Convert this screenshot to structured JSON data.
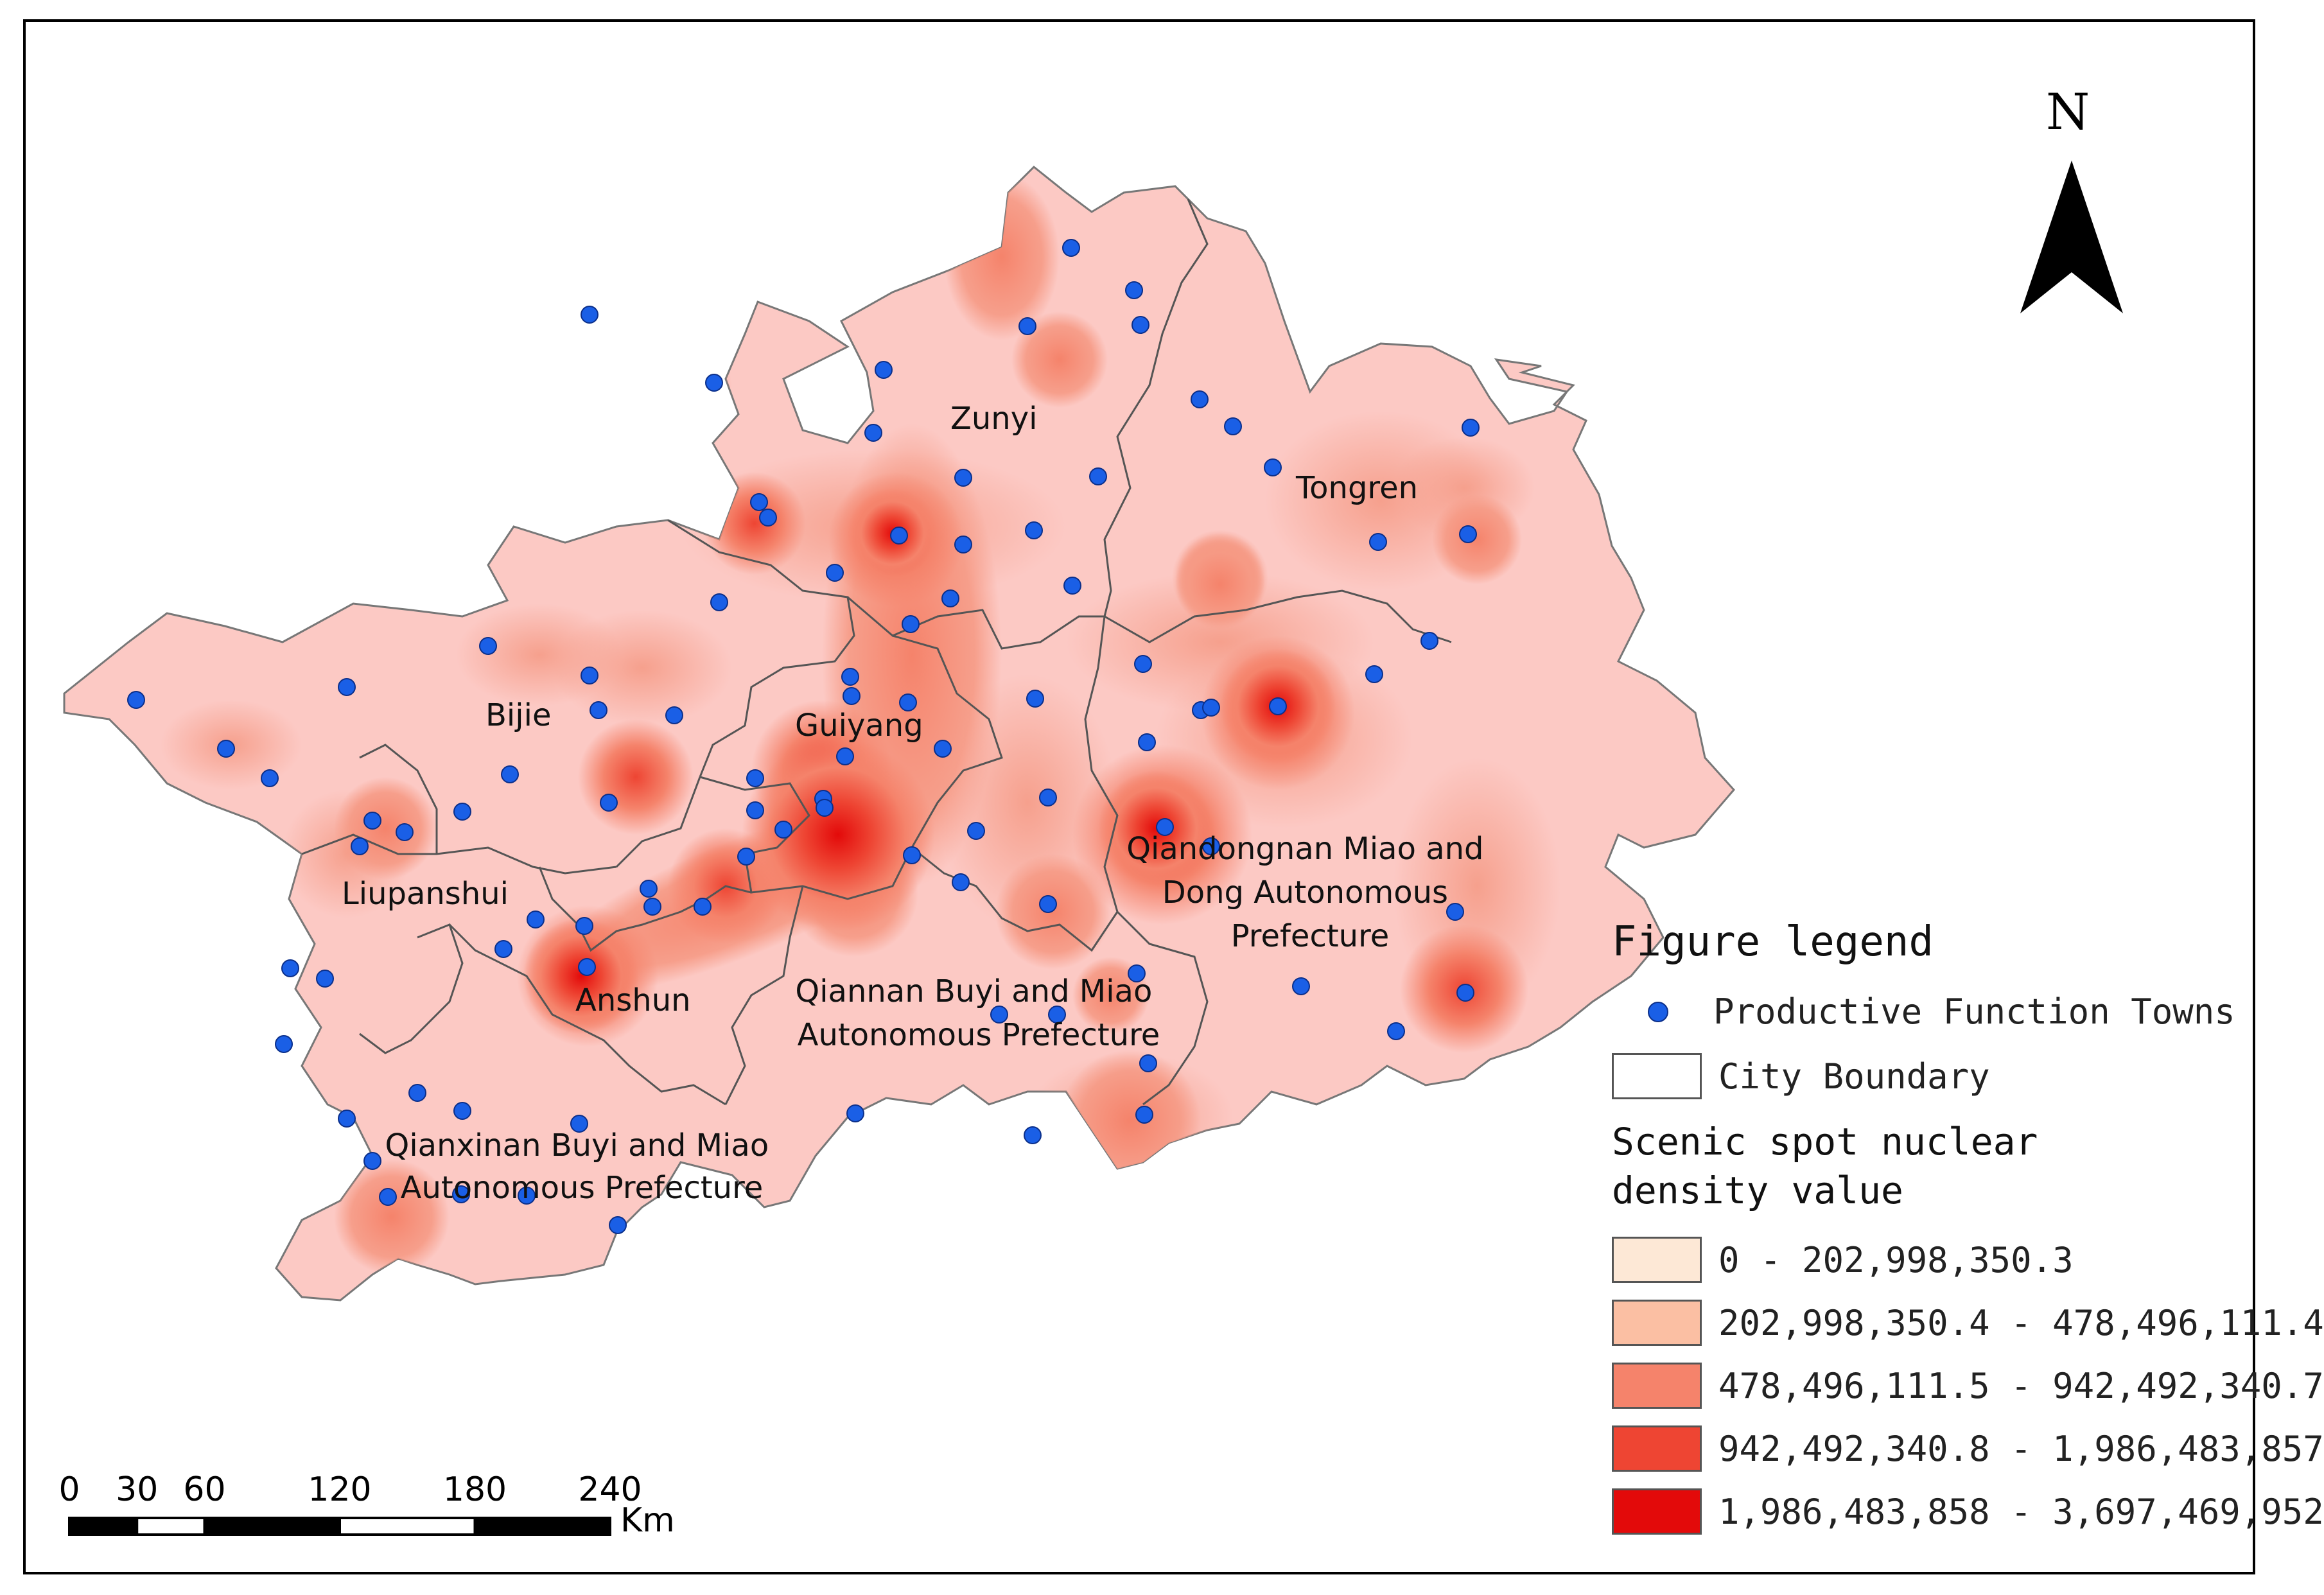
{
  "north_label": "N",
  "cities": [
    {
      "id": "zunyi",
      "name": "Zunyi"
    },
    {
      "id": "tongren",
      "name": "Tongren"
    },
    {
      "id": "bijie",
      "name": "Bijie"
    },
    {
      "id": "guiyang",
      "name": "Guiyang"
    },
    {
      "id": "liupanshui",
      "name": "Liupanshui"
    },
    {
      "id": "anshun",
      "name": "Anshun"
    },
    {
      "id": "qiandongnan",
      "name_lines": [
        "Qiandongnan Miao and",
        "Dong Autonomous",
        "Prefecture"
      ]
    },
    {
      "id": "qiannan",
      "name_lines": [
        "Qiannan Buyi and Miao",
        "Autonomous Prefecture"
      ]
    },
    {
      "id": "qianxinan",
      "name_lines": [
        "Qianxinan Buyi and Miao",
        "Autonomous Prefecture"
      ]
    }
  ],
  "legend": {
    "title": "Figure legend",
    "towns_label": "Productive Function Towns",
    "boundary_label": "City Boundary",
    "density_heading": "Scenic spot nuclear density value",
    "classes": [
      {
        "label": "0 - 202,998,350.3",
        "color": "#fde8d6"
      },
      {
        "label": "202,998,350.4 - 478,496,111.4",
        "color": "#fbbfa3"
      },
      {
        "label": "478,496,111.5 - 942,492,340.7",
        "color": "#f5836b"
      },
      {
        "label": "942,492,340.8 - 1,986,483,857",
        "color": "#ee4533"
      },
      {
        "label": "1,986,483,858 - 3,697,469,952",
        "color": "#e30a0a"
      }
    ]
  },
  "scale_bar": {
    "ticks": [
      "0",
      "30",
      "60",
      "120",
      "180",
      "240"
    ],
    "tick_values": [
      0,
      30,
      60,
      120,
      180,
      240
    ],
    "unit": "Km"
  },
  "colors": {
    "base_fill": "#fcc9c4",
    "town_dot": "#1a5fe6",
    "boundary": "#555555"
  }
}
